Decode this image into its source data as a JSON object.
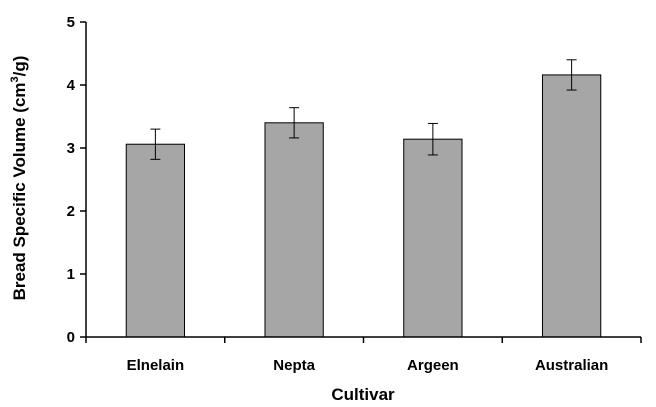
{
  "chart_data": {
    "type": "bar",
    "categories": [
      "Elnelain",
      "Nepta",
      "Argeen",
      "Australian"
    ],
    "values": [
      3.06,
      3.4,
      3.14,
      4.16
    ],
    "errors": [
      0.24,
      0.24,
      0.25,
      0.24
    ],
    "xlabel": "Cultivar",
    "ylabel_main": "Bread Specific Volume (cm",
    "ylabel_sup": "3",
    "ylabel_tail": "/g)",
    "ylim": [
      0,
      5
    ],
    "yticks": [
      "0",
      "1",
      "2",
      "3",
      "4",
      "5"
    ],
    "grid": false,
    "bar_color": "#a6a6a6",
    "bar_edge_color": "#000000"
  }
}
